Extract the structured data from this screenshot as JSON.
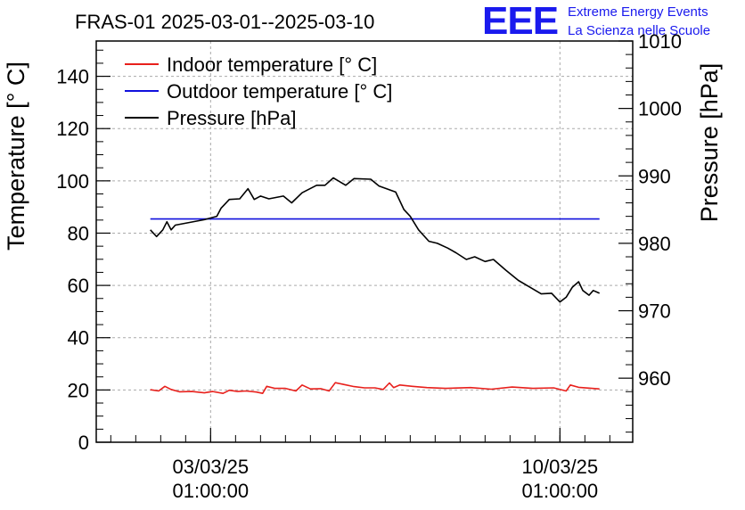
{
  "chart_data": {
    "type": "line",
    "title": "FRAS-01 2025-03-01--2025-03-10",
    "logo": {
      "letters": "EEE",
      "line1": "Extreme Energy Events",
      "line2": "La Scienza nelle Scuole",
      "color": "#1a1aee"
    },
    "ylabel": "Temperature [° C]",
    "y2label": "Pressure [hPa]",
    "ylim": [
      0,
      153.5
    ],
    "y2lim": [
      950.5,
      1010
    ],
    "yticks": [
      0,
      20,
      40,
      60,
      80,
      100,
      120,
      140
    ],
    "y2ticks": [
      960,
      970,
      980,
      990,
      1000,
      1010
    ],
    "xlim": [
      "2025-02-28T18:00",
      "2025-03-11T12:00"
    ],
    "xticks": [
      {
        "x": "2025-03-03T01:00",
        "date": "03/03/25",
        "time": "01:00:00"
      },
      {
        "x": "2025-03-10T01:00",
        "date": "10/03/25",
        "time": "01:00:00"
      }
    ],
    "grid": true,
    "legend": {
      "placement": "top-left",
      "entries": [
        "Indoor temperature [° C]",
        "Outdoor temperature [° C]",
        "Pressure [hPa]"
      ]
    },
    "series": [
      {
        "name": "Indoor temperature [° C]",
        "axis": "left",
        "color": "#e8201c",
        "points": [
          [
            "2025-03-01T20:00",
            20.1
          ],
          [
            "2025-03-02T00:00",
            19.6
          ],
          [
            "2025-03-02T03:00",
            21.4
          ],
          [
            "2025-03-02T06:00",
            20.2
          ],
          [
            "2025-03-02T10:00",
            19.3
          ],
          [
            "2025-03-02T16:00",
            19.4
          ],
          [
            "2025-03-02T22:00",
            18.9
          ],
          [
            "2025-03-03T02:00",
            19.4
          ],
          [
            "2025-03-03T07:00",
            18.7
          ],
          [
            "2025-03-03T10:00",
            19.9
          ],
          [
            "2025-03-03T14:00",
            19.4
          ],
          [
            "2025-03-03T18:00",
            19.6
          ],
          [
            "2025-03-03T23:00",
            19.2
          ],
          [
            "2025-03-04T02:00",
            18.7
          ],
          [
            "2025-03-04T04:00",
            21.4
          ],
          [
            "2025-03-04T08:00",
            20.6
          ],
          [
            "2025-03-04T13:00",
            20.6
          ],
          [
            "2025-03-04T18:00",
            19.6
          ],
          [
            "2025-03-04T21:00",
            21.9
          ],
          [
            "2025-03-05T01:00",
            20.4
          ],
          [
            "2025-03-05T06:00",
            20.5
          ],
          [
            "2025-03-05T10:00",
            19.6
          ],
          [
            "2025-03-05T13:00",
            22.8
          ],
          [
            "2025-03-05T17:00",
            22.1
          ],
          [
            "2025-03-05T22:00",
            21.3
          ],
          [
            "2025-03-06T03:00",
            20.8
          ],
          [
            "2025-03-06T08:00",
            20.8
          ],
          [
            "2025-03-06T12:00",
            20.2
          ],
          [
            "2025-03-06T15:00",
            22.7
          ],
          [
            "2025-03-06T17:00",
            20.9
          ],
          [
            "2025-03-06T20:00",
            21.9
          ],
          [
            "2025-03-07T02:00",
            21.4
          ],
          [
            "2025-03-07T09:00",
            20.9
          ],
          [
            "2025-03-07T18:00",
            20.6
          ],
          [
            "2025-03-08T06:00",
            20.9
          ],
          [
            "2025-03-08T16:00",
            20.3
          ],
          [
            "2025-03-09T02:00",
            21.1
          ],
          [
            "2025-03-09T12:00",
            20.6
          ],
          [
            "2025-03-09T22:00",
            20.8
          ],
          [
            "2025-03-10T04:00",
            19.6
          ],
          [
            "2025-03-10T06:00",
            21.9
          ],
          [
            "2025-03-10T10:00",
            21.0
          ],
          [
            "2025-03-10T20:00",
            20.4
          ]
        ]
      },
      {
        "name": "Outdoor temperature [° C]",
        "axis": "left",
        "color": "#1010dd",
        "points": [
          [
            "2025-03-01T20:00",
            85.4
          ],
          [
            "2025-03-10T20:00",
            85.4
          ]
        ]
      },
      {
        "name": "Pressure [hPa]",
        "axis": "right",
        "color": "#000000",
        "points": [
          [
            "2025-03-01T20:00",
            982.0
          ],
          [
            "2025-03-01T23:00",
            981.0
          ],
          [
            "2025-03-02T02:00",
            982.0
          ],
          [
            "2025-03-02T04:00",
            983.2
          ],
          [
            "2025-03-02T06:00",
            982.0
          ],
          [
            "2025-03-02T08:00",
            982.7
          ],
          [
            "2025-03-02T22:00",
            983.5
          ],
          [
            "2025-03-03T04:00",
            984.0
          ],
          [
            "2025-03-03T06:00",
            985.2
          ],
          [
            "2025-03-03T10:00",
            986.5
          ],
          [
            "2025-03-03T15:00",
            986.6
          ],
          [
            "2025-03-03T19:00",
            988.1
          ],
          [
            "2025-03-03T22:00",
            986.5
          ],
          [
            "2025-03-04T01:00",
            987.0
          ],
          [
            "2025-03-04T05:00",
            986.6
          ],
          [
            "2025-03-04T12:00",
            987.0
          ],
          [
            "2025-03-04T16:00",
            986.0
          ],
          [
            "2025-03-04T21:00",
            987.5
          ],
          [
            "2025-03-05T04:00",
            988.6
          ],
          [
            "2025-03-05T08:00",
            988.6
          ],
          [
            "2025-03-05T12:00",
            989.7
          ],
          [
            "2025-03-05T18:00",
            988.6
          ],
          [
            "2025-03-05T22:00",
            989.6
          ],
          [
            "2025-03-06T06:00",
            989.5
          ],
          [
            "2025-03-06T10:00",
            988.5
          ],
          [
            "2025-03-06T18:00",
            987.6
          ],
          [
            "2025-03-06T22:00",
            985.0
          ],
          [
            "2025-03-07T01:00",
            984.0
          ],
          [
            "2025-03-07T05:00",
            982.0
          ],
          [
            "2025-03-07T10:00",
            980.3
          ],
          [
            "2025-03-07T14:00",
            980.0
          ],
          [
            "2025-03-07T19:00",
            979.3
          ],
          [
            "2025-03-07T23:00",
            978.6
          ],
          [
            "2025-03-08T04:00",
            977.6
          ],
          [
            "2025-03-08T08:00",
            978.0
          ],
          [
            "2025-03-08T13:00",
            977.3
          ],
          [
            "2025-03-08T17:00",
            977.6
          ],
          [
            "2025-03-08T23:00",
            976.0
          ],
          [
            "2025-03-09T05:00",
            974.5
          ],
          [
            "2025-03-09T10:00",
            973.6
          ],
          [
            "2025-03-09T16:00",
            972.5
          ],
          [
            "2025-03-09T21:00",
            972.6
          ],
          [
            "2025-03-10T01:00",
            971.3
          ],
          [
            "2025-03-10T04:00",
            972.0
          ],
          [
            "2025-03-10T07:00",
            973.5
          ],
          [
            "2025-03-10T10:00",
            974.3
          ],
          [
            "2025-03-10T12:00",
            973.0
          ],
          [
            "2025-03-10T15:00",
            972.3
          ],
          [
            "2025-03-10T17:00",
            973.0
          ],
          [
            "2025-03-10T20:00",
            972.6
          ]
        ]
      }
    ]
  }
}
